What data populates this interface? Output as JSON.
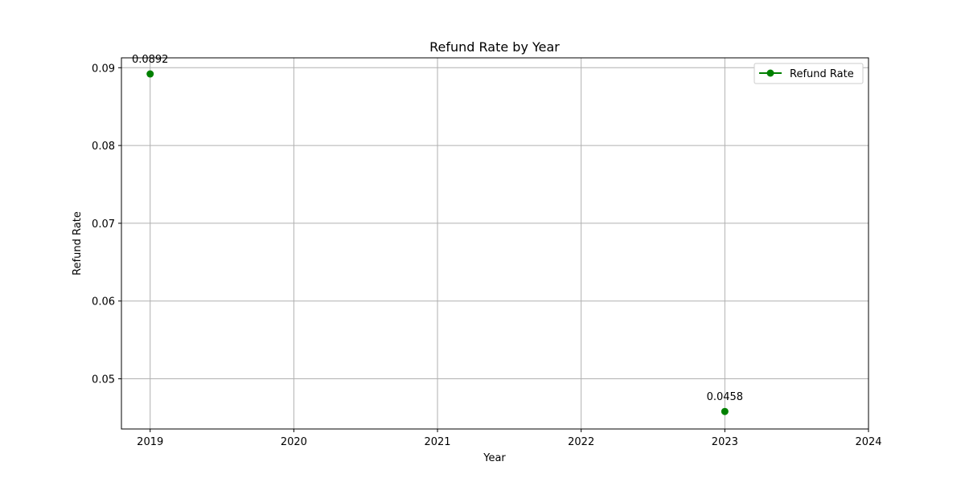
{
  "chart_data": {
    "type": "line",
    "title": "Refund Rate by Year",
    "xlabel": "Year",
    "ylabel": "Refund Rate",
    "xlim": [
      2018.8,
      2024
    ],
    "ylim": [
      0.04355,
      0.09127
    ],
    "x_ticks": [
      2019,
      2020,
      2021,
      2022,
      2023,
      2024
    ],
    "x_tick_labels": [
      "2019",
      "2020",
      "2021",
      "2022",
      "2023",
      "2024"
    ],
    "y_ticks": [
      0.05,
      0.06,
      0.07,
      0.08,
      0.09
    ],
    "y_tick_labels": [
      "0.05",
      "0.06",
      "0.07",
      "0.08",
      "0.09"
    ],
    "grid": true,
    "legend_position": "top-right",
    "series": [
      {
        "name": "Refund Rate",
        "color": "#008000",
        "marker": "circle",
        "points": [
          {
            "x": 2019,
            "y": 0.0892,
            "label": "0.0892"
          },
          {
            "x": 2023,
            "y": 0.0458,
            "label": "0.0458"
          }
        ]
      }
    ]
  }
}
